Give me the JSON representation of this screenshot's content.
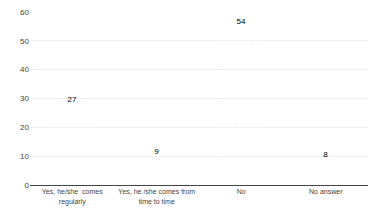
{
  "chart_data": {
    "type": "bar",
    "categories": [
      "Yes, he/she  comes\nregularly",
      "Yes, he /she comes from\ntime to time",
      "No",
      "No answer"
    ],
    "values": [
      27,
      9.0,
      54,
      8.0
    ],
    "color": "#92c0e0",
    "ylim": [
      0,
      60
    ],
    "yticks": [
      0,
      10,
      20,
      30,
      40,
      50,
      60
    ],
    "grid": true,
    "data_labels": true
  }
}
